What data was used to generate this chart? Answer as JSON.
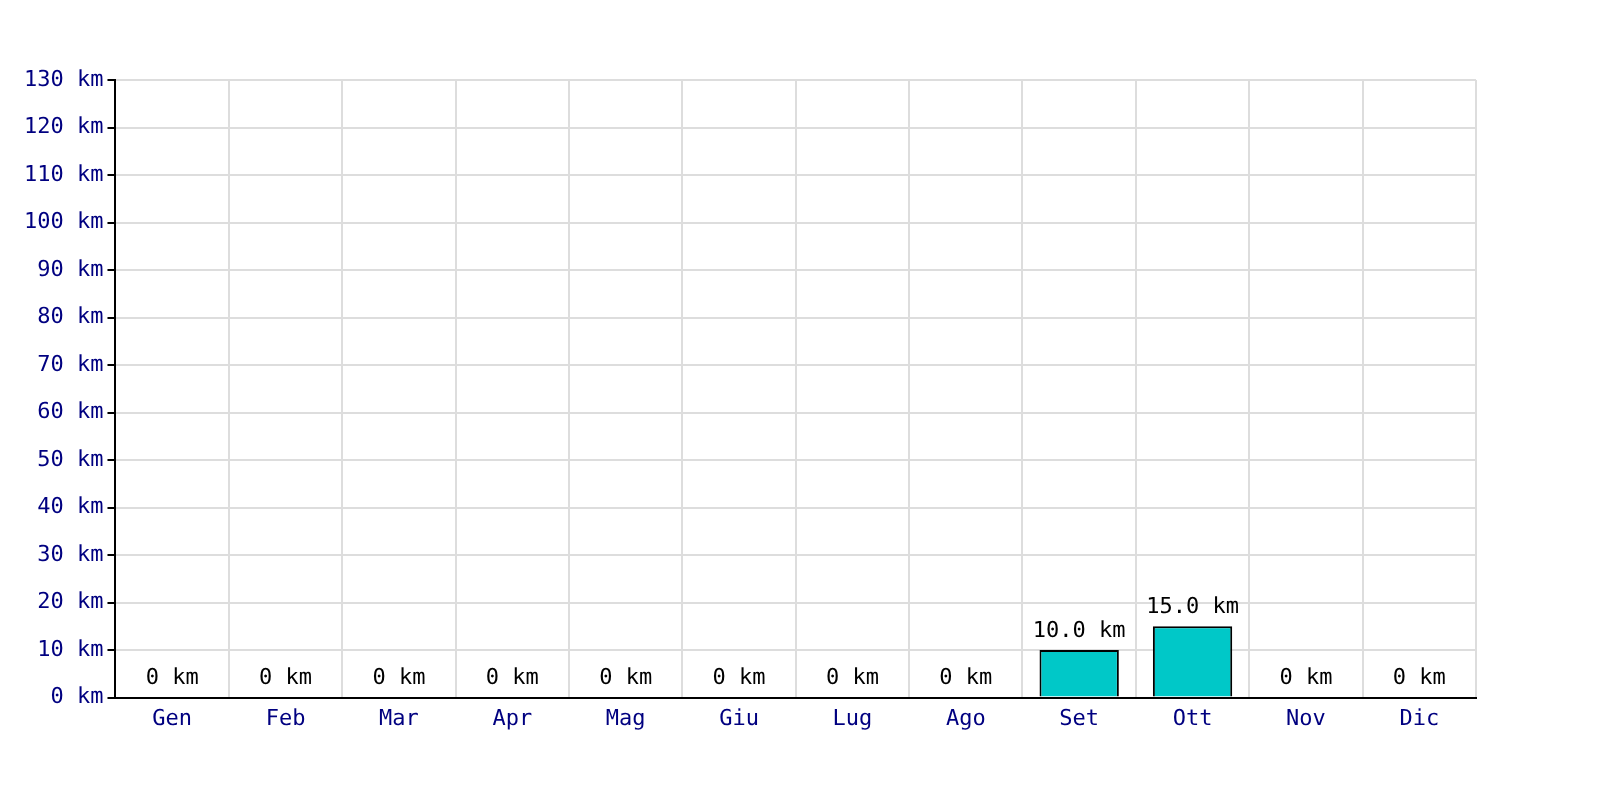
{
  "chart_data": {
    "type": "bar",
    "categories": [
      "Gen",
      "Feb",
      "Mar",
      "Apr",
      "Mag",
      "Giu",
      "Lug",
      "Ago",
      "Set",
      "Ott",
      "Nov",
      "Dic"
    ],
    "values": [
      0,
      0,
      0,
      0,
      0,
      0,
      0,
      0,
      10,
      15,
      0,
      0
    ],
    "value_labels": [
      "0 km",
      "0 km",
      "0 km",
      "0 km",
      "0 km",
      "0 km",
      "0 km",
      "0 km",
      "10.0 km",
      "15.0 km",
      "0 km",
      "0 km"
    ],
    "color": "#00c8c8",
    "ylim": [
      0,
      130
    ],
    "yticks": [
      {
        "value": 0,
        "label": "0 km"
      },
      {
        "value": 10,
        "label": "10 km"
      },
      {
        "value": 20,
        "label": "20 km"
      },
      {
        "value": 30,
        "label": "30 km"
      },
      {
        "value": 40,
        "label": "40 km"
      },
      {
        "value": 50,
        "label": "50 km"
      },
      {
        "value": 60,
        "label": "60 km"
      },
      {
        "value": 70,
        "label": "70 km"
      },
      {
        "value": 80,
        "label": "80 km"
      },
      {
        "value": 90,
        "label": "90 km"
      },
      {
        "value": 100,
        "label": "100 km"
      },
      {
        "value": 110,
        "label": "110 km"
      },
      {
        "value": 120,
        "label": "120 km"
      },
      {
        "value": 130,
        "label": "130 km"
      }
    ],
    "grid": true
  }
}
